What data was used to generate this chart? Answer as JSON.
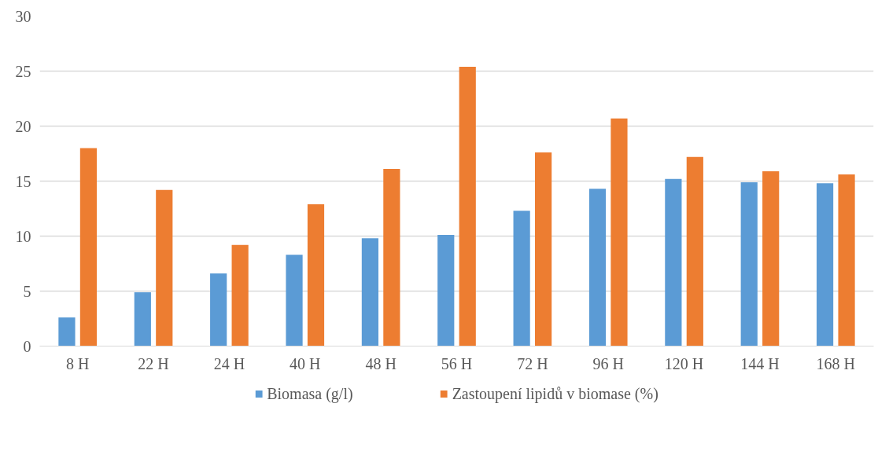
{
  "chart_data": {
    "type": "bar",
    "categories": [
      "8 H",
      "22 H",
      "24 H",
      "40 H",
      "48 H",
      "56 H",
      "72 H",
      "96 H",
      "120 H",
      "144 H",
      "168 H"
    ],
    "series": [
      {
        "name": "Biomasa (g/l)",
        "color": "#5b9bd5",
        "values": [
          2.6,
          4.9,
          6.6,
          8.3,
          9.8,
          10.1,
          12.3,
          14.3,
          15.2,
          14.9,
          14.8
        ]
      },
      {
        "name": "Zastoupení lipidů v biomase (%)",
        "color": "#ed7d31",
        "values": [
          18.0,
          14.2,
          9.2,
          12.9,
          16.1,
          25.4,
          17.6,
          20.7,
          17.2,
          15.9,
          15.6
        ]
      }
    ],
    "ylim": [
      0,
      30
    ],
    "yticks": [
      0,
      5,
      10,
      15,
      20,
      25,
      30
    ],
    "grid": "y",
    "legend": "bottom"
  }
}
